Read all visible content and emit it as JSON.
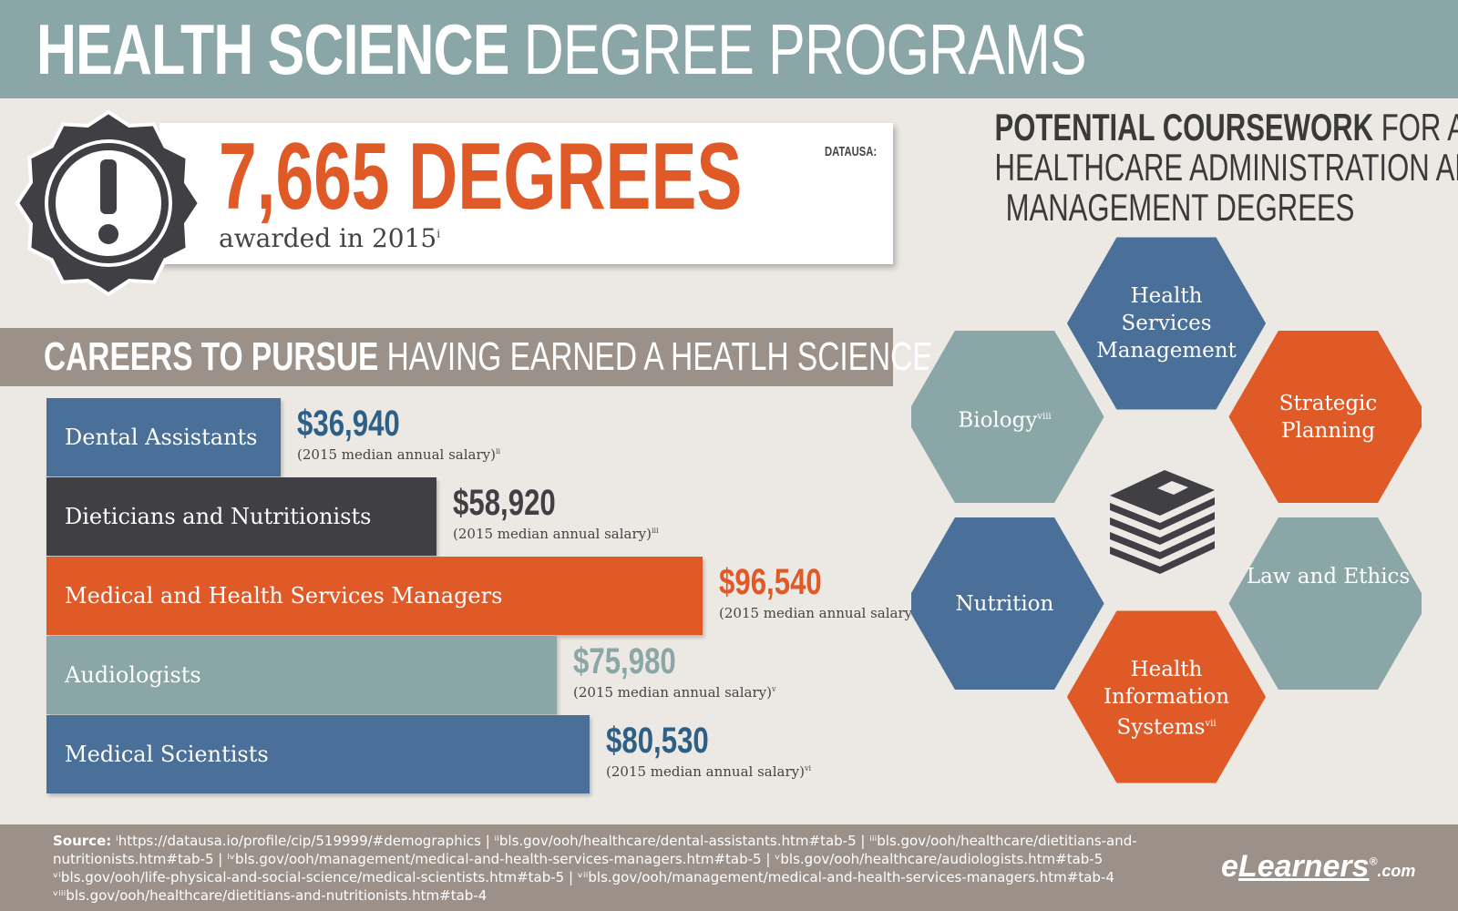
{
  "header": {
    "title_bold": "HEALTH SCIENCE",
    "title_light": "DEGREE PROGRAMS"
  },
  "degrees": {
    "number": "7,665 DEGREES",
    "sub": "awarded in 2015",
    "sub_sup": "i",
    "source": "DATAUSA:"
  },
  "careers": {
    "title_bold": "CAREERS TO PURSUE",
    "title_light": "HAVING EARNED A HEATLH SCIENCE DEGREE",
    "items": [
      {
        "label": "Dental Assistants",
        "salary": "$36,940",
        "note": "(2015 median annual salary)",
        "sup": "ii",
        "value": 36940,
        "color": "#4a7099",
        "salary_color": "#2e5f86"
      },
      {
        "label": "Dieticians and Nutritionists",
        "salary": "$58,920",
        "note": "(2015 median annual salary)",
        "sup": "iii",
        "value": 58920,
        "color": "#3f3f44",
        "salary_color": "#3f3f44"
      },
      {
        "label": "Medical and Health Services Managers",
        "salary": "$96,540",
        "note": "(2015 median annual salary)",
        "sup": "iv",
        "value": 96540,
        "color": "#e05a28",
        "salary_color": "#e05a28"
      },
      {
        "label": "Audiologists",
        "salary": "$75,980",
        "note": "(2015 median annual salary)",
        "sup": "v",
        "value": 75980,
        "color": "#8aa6a6",
        "salary_color": "#8aa6a6"
      },
      {
        "label": "Medical Scientists",
        "salary": "$80,530",
        "note": "(2015 median annual salary)",
        "sup": "vi",
        "value": 80530,
        "color": "#4a7099",
        "salary_color": "#2e5f86"
      }
    ]
  },
  "coursework": {
    "title_bold": "POTENTIAL COURSEWORK",
    "title_light1": "FOR A",
    "title_line2": "HEALTHCARE ADMINISTRATION AND",
    "title_line3": "MANAGEMENT DEGREES",
    "hexes": [
      {
        "label": "Health Services Management",
        "sup": "",
        "color": "#4a7099"
      },
      {
        "label": "Strategic Planning",
        "sup": "",
        "color": "#e05a28"
      },
      {
        "label": "Law and Ethics",
        "sup": "",
        "color": "#8aa6a6"
      },
      {
        "label": "Health Information Systems",
        "sup": "vii",
        "color": "#e05a28"
      },
      {
        "label": "Nutrition",
        "sup": "",
        "color": "#4a7099"
      },
      {
        "label": "Biology",
        "sup": "viii",
        "color": "#8aa6a6"
      }
    ],
    "center_icon": "books-icon"
  },
  "footer": {
    "source_label": "Source:",
    "source_text": "ⁱhttps://datausa.io/profile/cip/519999/#demographics | ⁱⁱbls.gov/ooh/healthcare/dental-assistants.htm#tab-5 | ⁱⁱⁱbls.gov/ooh/healthcare/dietitians-and-nutritionists.htm#tab-5 | ⁱᵛbls.gov/ooh/management/medical-and-health-services-managers.htm#tab-5 | ᵛbls.gov/ooh/healthcare/audiologists.htm#tab-5 ᵛⁱbls.gov/ooh/life-physical-and-social-science/medical-scientists.htm#tab-5 | ᵛⁱⁱbls.gov/ooh/management/medical-and-health-services-managers.htm#tab-4 ᵛⁱⁱⁱbls.gov/ooh/healthcare/dietitians-and-nutritionists.htm#tab-4",
    "logo_e": "e",
    "logo_main": "Learners",
    "logo_reg": "®",
    "logo_com": ".com"
  }
}
